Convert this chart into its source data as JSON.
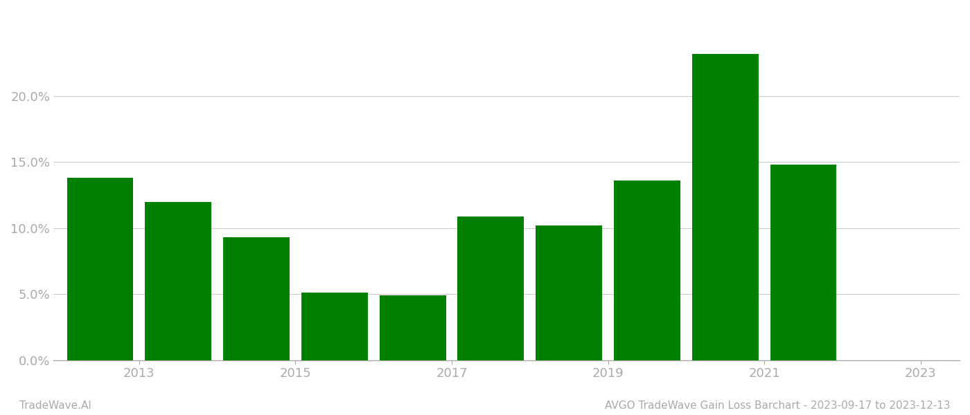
{
  "years": [
    2013,
    2014,
    2015,
    2016,
    2017,
    2018,
    2019,
    2020,
    2021,
    2022
  ],
  "values": [
    0.138,
    0.12,
    0.093,
    0.051,
    0.049,
    0.109,
    0.102,
    0.136,
    0.232,
    0.148
  ],
  "bar_color": "#008000",
  "background_color": "#ffffff",
  "ylabel_ticks": [
    0.0,
    0.05,
    0.1,
    0.15,
    0.2
  ],
  "xlabel_ticks": [
    2013,
    2015,
    2017,
    2019,
    2021,
    2023
  ],
  "xlabel_tick_positions": [
    2013.5,
    2015.5,
    2017.5,
    2019.5,
    2021.5,
    2023.5
  ],
  "title_right": "AVGO TradeWave Gain Loss Barchart - 2023-09-17 to 2023-12-13",
  "title_left": "TradeWave.AI",
  "grid_color": "#cccccc",
  "axis_color": "#aaaaaa",
  "tick_color": "#aaaaaa",
  "ylim": [
    0,
    0.265
  ],
  "xlim_left": 2012.4,
  "xlim_right": 2024.0,
  "bar_width": 0.85
}
